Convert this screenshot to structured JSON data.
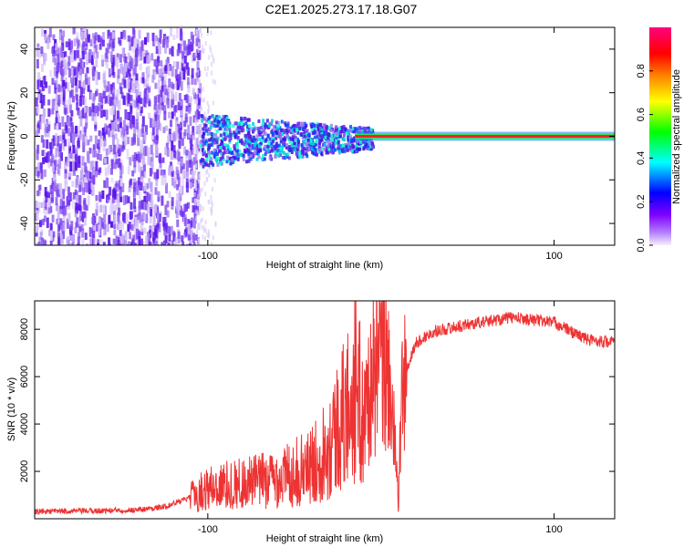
{
  "title": "C2E1.2025.273.17.18.G07",
  "chart_data": [
    {
      "type": "heatmap",
      "name": "spectrogram",
      "xlabel": "Height of straight line (km)",
      "ylabel": "Frequency (Hz)",
      "xlim": [
        -200,
        135
      ],
      "ylim": [
        -50,
        50
      ],
      "xticks": [
        -100,
        100
      ],
      "xtick_labels": [
        "-100",
        "100"
      ],
      "yticks": [
        -40,
        -20,
        0,
        20,
        40
      ],
      "ytick_labels": [
        "-40",
        "-20",
        "0",
        "20",
        "40"
      ],
      "colorbar": {
        "label": "Normalized spectral amplitude",
        "range": [
          0,
          1
        ],
        "ticks": [
          0.0,
          0.2,
          0.4,
          0.6,
          0.8
        ],
        "tick_labels": [
          "0.0",
          "0.2",
          "0.4",
          "0.6",
          "0.8"
        ],
        "colors": [
          "#f4f0fb",
          "#7f00ff",
          "#0000ff",
          "#00ffff",
          "#00ff00",
          "#ffff00",
          "#ff8000",
          "#ff0000",
          "#ff0080"
        ]
      },
      "regions": [
        {
          "name": "broadband-noise",
          "x_range": [
            -200,
            -105
          ],
          "f_range": [
            -50,
            50
          ]
        },
        {
          "name": "transition-noise",
          "x_range": [
            -105,
            -10
          ],
          "f_range": [
            -15,
            15
          ]
        },
        {
          "name": "carrier-line",
          "x_range": [
            -15,
            135
          ],
          "f_center": 0,
          "amplitude": 1.0
        }
      ]
    },
    {
      "type": "line",
      "name": "snr",
      "xlabel": "Height of straight line (km)",
      "ylabel": "SNR (10 * v/v)",
      "xlim": [
        -200,
        135
      ],
      "ylim": [
        0,
        9200
      ],
      "xticks": [
        -100,
        100
      ],
      "xtick_labels": [
        "-100",
        "100"
      ],
      "yticks": [
        2000,
        4000,
        6000,
        8000
      ],
      "ytick_labels": [
        "2000",
        "4000",
        "6000",
        "8000"
      ],
      "color": "#ee3333",
      "points": [
        [
          -200,
          300
        ],
        [
          -180,
          320
        ],
        [
          -160,
          340
        ],
        [
          -140,
          380
        ],
        [
          -125,
          500
        ],
        [
          -110,
          900
        ],
        [
          -100,
          1300
        ],
        [
          -80,
          1500
        ],
        [
          -60,
          1700
        ],
        [
          -40,
          2200
        ],
        [
          -30,
          3200
        ],
        [
          -20,
          4500
        ],
        [
          -15,
          5600
        ],
        [
          -10,
          4200
        ],
        [
          -5,
          6000
        ],
        [
          0,
          6500
        ],
        [
          5,
          6100
        ],
        [
          10,
          700
        ],
        [
          12,
          5000
        ],
        [
          15,
          6300
        ],
        [
          20,
          7400
        ],
        [
          30,
          7900
        ],
        [
          50,
          8200
        ],
        [
          75,
          8500
        ],
        [
          100,
          8300
        ],
        [
          110,
          7900
        ],
        [
          120,
          7550
        ],
        [
          135,
          7450
        ]
      ]
    }
  ]
}
